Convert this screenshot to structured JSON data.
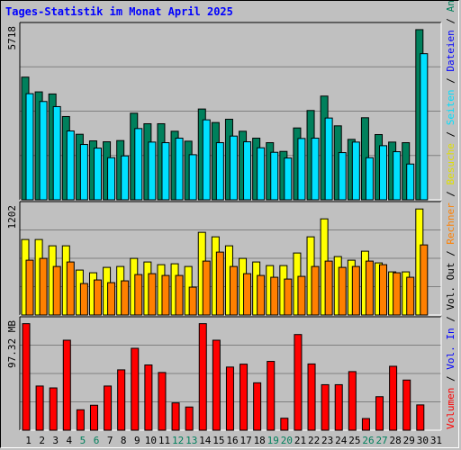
{
  "title": "Tages-Statistik im Monat April 2025",
  "labels": {
    "anfragen": "Anfragen",
    "dateien": "Dateien",
    "seiten": "Seiten",
    "besuche": "Besuche",
    "rechner": "Rechner",
    "vol_out": "Vol. Out",
    "vol_in": "Vol. In",
    "volumen": "Volumen",
    "separator": " / "
  },
  "colors": {
    "anfragen": "#00805c",
    "dateien": "#0000ff",
    "seiten": "#00e0ff",
    "besuche": "#ffff00",
    "rechner": "#ff8000",
    "volumen": "#ff0000",
    "vol_in": "#0000ff",
    "weekend_day": "#00805c",
    "weekday": "#000000"
  },
  "chart_data": [
    {
      "type": "bar",
      "panel": "hits",
      "ymax_label": "5718",
      "ylim": [
        0,
        5718
      ],
      "categories": [
        "1",
        "2",
        "3",
        "4",
        "5",
        "6",
        "7",
        "8",
        "9",
        "10",
        "11",
        "12",
        "13",
        "14",
        "15",
        "16",
        "17",
        "18",
        "19",
        "20",
        "21",
        "22",
        "23",
        "24",
        "25",
        "26",
        "27",
        "28",
        "29",
        "30",
        "31"
      ],
      "series": [
        {
          "name": "Anfragen",
          "values": [
            4080,
            3590,
            3520,
            2770,
            2180,
            1960,
            1930,
            1970,
            2880,
            2530,
            2530,
            2280,
            1950,
            3020,
            2570,
            2680,
            2280,
            2050,
            1900,
            1610,
            2390,
            2970,
            3450,
            2460,
            2010,
            2730,
            2170,
            1920,
            1900,
            5660,
            0
          ]
        },
        {
          "name": "Dateien",
          "values": [
            0,
            0,
            0,
            0,
            0,
            0,
            0,
            0,
            0,
            0,
            0,
            0,
            0,
            0,
            0,
            0,
            0,
            0,
            0,
            0,
            0,
            0,
            0,
            0,
            0,
            0,
            0,
            0,
            0,
            0,
            0
          ]
        },
        {
          "name": "Seiten",
          "values": [
            3530,
            3270,
            3100,
            2290,
            1840,
            1720,
            1400,
            1460,
            2370,
            1920,
            1900,
            2050,
            1500,
            2660,
            1900,
            2120,
            1930,
            1730,
            1580,
            1390,
            2040,
            2050,
            2720,
            1570,
            1920,
            1400,
            1800,
            1600,
            1190,
            4860,
            0
          ]
        }
      ]
    },
    {
      "type": "bar",
      "panel": "visits",
      "ymax_label": "1202",
      "ylim": [
        0,
        1202
      ],
      "categories": [
        "1",
        "2",
        "3",
        "4",
        "5",
        "6",
        "7",
        "8",
        "9",
        "10",
        "11",
        "12",
        "13",
        "14",
        "15",
        "16",
        "17",
        "18",
        "19",
        "20",
        "21",
        "22",
        "23",
        "24",
        "25",
        "26",
        "27",
        "28",
        "29",
        "30",
        "31"
      ],
      "series": [
        {
          "name": "Besuche",
          "values": [
            840,
            840,
            770,
            770,
            500,
            470,
            530,
            540,
            630,
            590,
            560,
            570,
            540,
            920,
            870,
            770,
            630,
            590,
            550,
            550,
            690,
            870,
            1070,
            650,
            610,
            710,
            580,
            480,
            480,
            1180,
            0
          ]
        },
        {
          "name": "Rechner",
          "values": [
            610,
            630,
            540,
            590,
            350,
            390,
            360,
            380,
            450,
            460,
            440,
            440,
            310,
            600,
            700,
            540,
            460,
            440,
            420,
            400,
            430,
            540,
            600,
            530,
            540,
            600,
            560,
            470,
            420,
            780,
            0
          ]
        }
      ]
    },
    {
      "type": "bar",
      "panel": "volume",
      "ymax_label": "97.32 MB",
      "ylim": [
        0,
        97.32
      ],
      "categories": [
        "1",
        "2",
        "3",
        "4",
        "5",
        "6",
        "7",
        "8",
        "9",
        "10",
        "11",
        "12",
        "13",
        "14",
        "15",
        "16",
        "17",
        "18",
        "19",
        "20",
        "21",
        "22",
        "23",
        "24",
        "25",
        "26",
        "27",
        "28",
        "29",
        "30",
        "31"
      ],
      "series": [
        {
          "name": "Volumen",
          "values": [
            96.0,
            39.8,
            38.1,
            81.1,
            18.4,
            22.5,
            39.8,
            54.4,
            73.8,
            58.8,
            52.0,
            24.6,
            20.9,
            96.0,
            81.1,
            56.9,
            59.5,
            42.7,
            62.0,
            10.8,
            86.2,
            59.7,
            41.0,
            41.0,
            52.8,
            10.5,
            30.2,
            57.6,
            45.2,
            22.8,
            0
          ]
        }
      ]
    }
  ],
  "day_colors": [
    "weekday",
    "weekday",
    "weekday",
    "weekday",
    "weekend_day",
    "weekend_day",
    "weekday",
    "weekday",
    "weekday",
    "weekday",
    "weekday",
    "weekend_day",
    "weekend_day",
    "weekday",
    "weekday",
    "weekday",
    "weekday",
    "weekday",
    "weekend_day",
    "weekend_day",
    "weekday",
    "weekday",
    "weekday",
    "weekday",
    "weekday",
    "weekend_day",
    "weekend_day",
    "weekday",
    "weekday",
    "weekday",
    "weekday"
  ]
}
